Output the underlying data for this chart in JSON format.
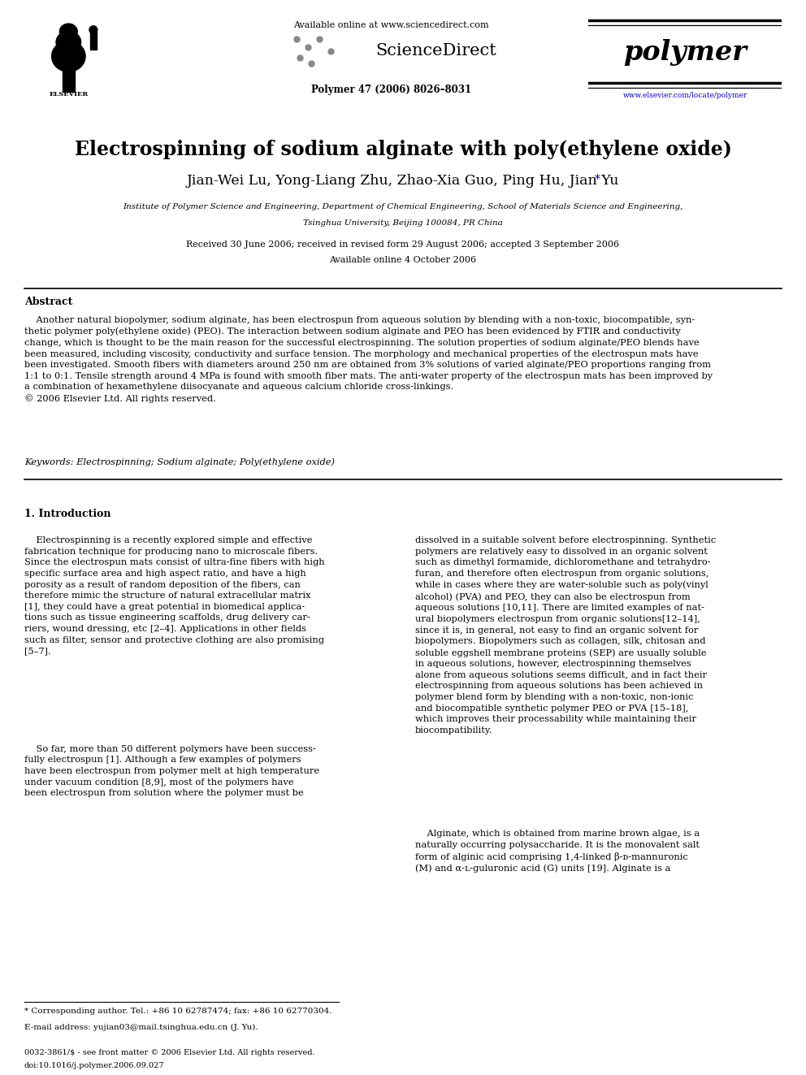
{
  "background_color": "#ffffff",
  "title": "Electrospinning of sodium alginate with poly(ethylene oxide)",
  "authors": "Jian-Wei Lu, Yong-Liang Zhu, Zhao-Xia Guo, Ping Hu, Jian Yu*",
  "affiliation_line1": "Institute of Polymer Science and Engineering, Department of Chemical Engineering, School of Materials Science and Engineering,",
  "affiliation_line2": "Tsinghua University, Beijing 100084, PR China",
  "received_text": "Received 30 June 2006; received in revised form 29 August 2006; accepted 3 September 2006",
  "available_text": "Available online 4 October 2006",
  "journal_header": "Available online at www.sciencedirect.com",
  "journal_name": "polymer",
  "journal_issue": "Polymer 47 (2006) 8026–8031",
  "journal_url": "www.elsevier.com/locate/polymer",
  "abstract_title": "Abstract",
  "keywords_text": "Keywords: Electrospinning; Sodium alginate; Poly(ethylene oxide)",
  "section1_title": "1. Introduction",
  "footnote_line1": "* Corresponding author. Tel.: +86 10 62787474; fax: +86 10 62770304.",
  "footnote_line2": "E-mail address: yujian03@mail.tsinghua.edu.cn (J. Yu).",
  "issn_text": "0032-3861/$ - see front matter © 2006 Elsevier Ltd. All rights reserved.",
  "doi_text": "doi:10.1016/j.polymer.2006.09.027"
}
